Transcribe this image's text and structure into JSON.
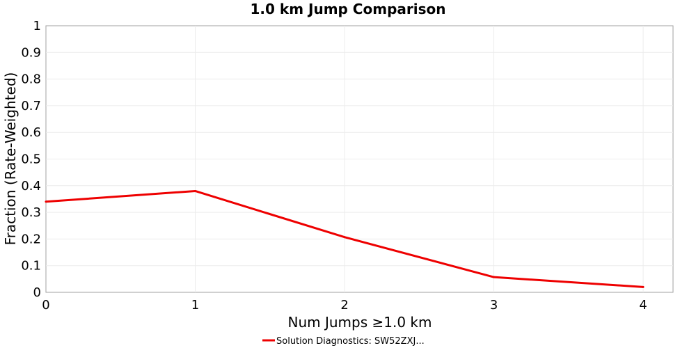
{
  "chart_data": {
    "type": "line",
    "title": "1.0 km Jump Comparison",
    "xlabel": "Num Jumps ≥1.0 km",
    "ylabel": "Fraction (Rate-Weighted)",
    "xlim": [
      0,
      4.2
    ],
    "ylim": [
      0,
      1
    ],
    "x_ticks": [
      "0",
      "1",
      "2",
      "3",
      "4"
    ],
    "y_ticks": [
      "0",
      "0.1",
      "0.2",
      "0.3",
      "0.4",
      "0.5",
      "0.6",
      "0.7",
      "0.8",
      "0.9",
      "1"
    ],
    "grid": true,
    "legend_position": "bottom-center",
    "series": [
      {
        "name": "Solution Diagnostics: SW52ZXJ...",
        "color": "#ee0000",
        "x": [
          0,
          1,
          2,
          3,
          4
        ],
        "y": [
          0.34,
          0.38,
          0.207,
          0.057,
          0.02
        ]
      }
    ]
  }
}
